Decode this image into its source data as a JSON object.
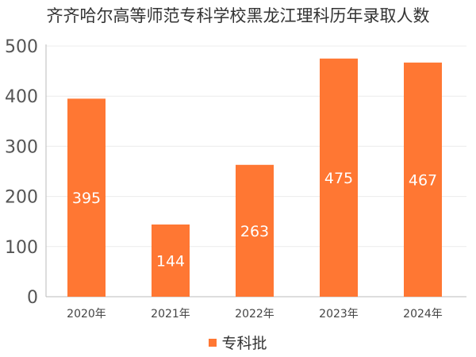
{
  "chart_data": {
    "type": "bar",
    "title": "齐齐哈尔高等师范专科学校黑龙江理科历年录取人数",
    "xlabel": "",
    "ylabel": "",
    "categories": [
      "2020年",
      "2021年",
      "2022年",
      "2023年",
      "2024年"
    ],
    "series": [
      {
        "name": "专科批",
        "values": [
          395,
          144,
          263,
          475,
          467
        ],
        "color": "#FF7733"
      }
    ],
    "ylim": [
      0,
      500
    ],
    "yticks": [
      0,
      100,
      200,
      300,
      400,
      500
    ],
    "grid": true,
    "legend_position": "bottom",
    "data_labels": "inside"
  }
}
